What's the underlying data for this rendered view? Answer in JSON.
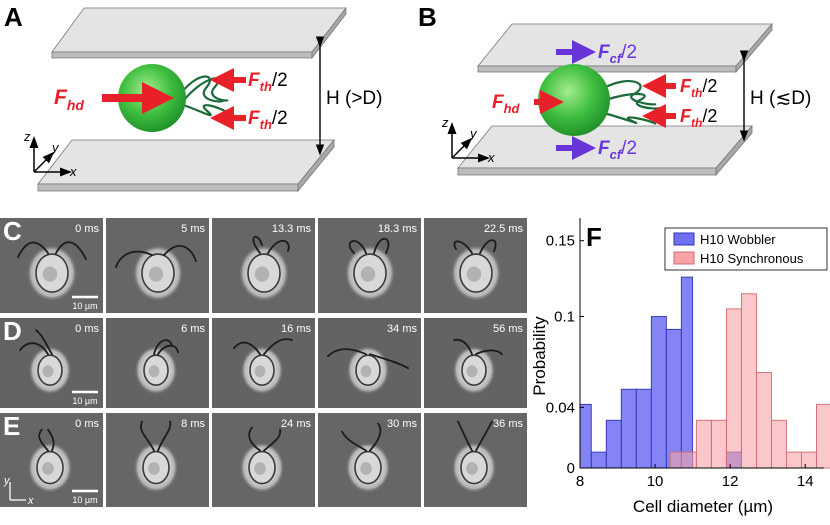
{
  "panels": {
    "A": {
      "label": "A",
      "force_hd_main": "F",
      "force_hd_sub": "hd",
      "force_th_main": "F",
      "force_th_sub": "th",
      "half": "/2",
      "height_label": "H (>D)",
      "axis_z": "z",
      "axis_y": "y",
      "axis_x": "x"
    },
    "B": {
      "label": "B",
      "force_hd_main": "F",
      "force_hd_sub": "hd",
      "force_th_main": "F",
      "force_th_sub": "th",
      "force_cf_main": "F",
      "force_cf_sub": "cf",
      "half": "/2",
      "height_label": "H (≲D)",
      "axis_z": "z",
      "axis_y": "y",
      "axis_x": "x"
    },
    "C": {
      "label": "C",
      "times": [
        "0 ms",
        "5 ms",
        "13.3 ms",
        "18.3 ms",
        "22.5 ms"
      ],
      "scalebar": "10 µm"
    },
    "D": {
      "label": "D",
      "times": [
        "0 ms",
        "6 ms",
        "16 ms",
        "34 ms",
        "56 ms"
      ],
      "scalebar": "10 µm"
    },
    "E": {
      "label": "E",
      "times": [
        "0 ms",
        "8 ms",
        "24 ms",
        "30 ms",
        "36 ms"
      ],
      "scalebar": "10 µm",
      "axis_y": "y",
      "axis_x": "x"
    },
    "F": {
      "label": "F"
    }
  },
  "chart_data": {
    "type": "bar",
    "xlabel": "Cell diameter (µm)",
    "ylabel": "Probability",
    "xlim": [
      8,
      14.5
    ],
    "ylim": [
      0,
      0.165
    ],
    "x_ticks": [
      8,
      10,
      12,
      14
    ],
    "y_ticks": [
      0,
      0.04,
      0.1,
      0.15
    ],
    "y_tick_labels": [
      "0",
      "0.04",
      "0.1",
      "0.15"
    ],
    "legend_position": "top-right",
    "series": [
      {
        "name": "H10 Wobbler",
        "color": "#6f6ff2",
        "edge": "#3333bb",
        "bins": [
          [
            8.0,
            8.3,
            0.042
          ],
          [
            8.3,
            8.7,
            0.0105
          ],
          [
            8.7,
            9.1,
            0.0315
          ],
          [
            9.1,
            9.5,
            0.052
          ],
          [
            9.5,
            9.9,
            0.052
          ],
          [
            9.9,
            10.3,
            0.1
          ],
          [
            10.3,
            10.7,
            0.0915
          ],
          [
            10.7,
            11.0,
            0.126
          ],
          [
            11.0,
            11.5,
            0.0
          ],
          [
            11.5,
            11.9,
            0.0
          ],
          [
            11.9,
            12.3,
            0.0105
          ]
        ]
      },
      {
        "name": "H10 Synchronous",
        "color": "#f7a3a6",
        "edge": "#d06a70",
        "bins": [
          [
            10.4,
            10.7,
            0.0105
          ],
          [
            10.7,
            11.1,
            0.0105
          ],
          [
            11.1,
            11.5,
            0.0315
          ],
          [
            11.5,
            11.9,
            0.0315
          ],
          [
            11.9,
            12.3,
            0.105
          ],
          [
            12.3,
            12.7,
            0.115
          ],
          [
            12.7,
            13.1,
            0.063
          ],
          [
            13.1,
            13.5,
            0.0315
          ],
          [
            13.5,
            13.9,
            0.0105
          ],
          [
            13.9,
            14.3,
            0.0105
          ],
          [
            14.3,
            14.7,
            0.042
          ]
        ]
      }
    ]
  },
  "colors": {
    "cell": "#3fbf3f",
    "flagella": "#1a6a3a",
    "red_arrow": "#e8202a",
    "purple_arrow": "#6a35d8",
    "plate": "#d4d4d4"
  }
}
